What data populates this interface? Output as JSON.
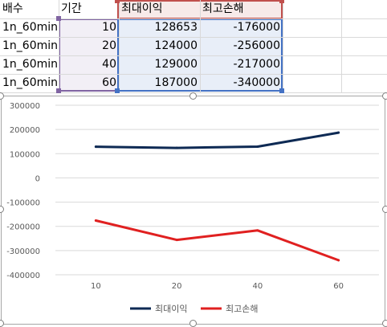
{
  "sheet": {
    "headers": [
      "배수",
      "기간",
      "최대이익",
      "최고손해"
    ],
    "rows": [
      {
        "multiplier": "1n_60min",
        "period": "10",
        "max_profit": "128653",
        "max_loss": "-176000"
      },
      {
        "multiplier": "1n_60min",
        "period": "20",
        "max_profit": "124000",
        "max_loss": "-256000"
      },
      {
        "multiplier": "1n_60min",
        "period": "40",
        "max_profit": "129000",
        "max_loss": "-217000"
      },
      {
        "multiplier": "1n_60min",
        "period": "60",
        "max_profit": "187000",
        "max_loss": "-340000"
      }
    ],
    "colors": {
      "purple": "#8064a2",
      "blue": "#4472c4",
      "red": "#c0504d"
    }
  },
  "chart_data": {
    "type": "line",
    "categories": [
      "10",
      "20",
      "40",
      "60"
    ],
    "series": [
      {
        "name": "최대이익",
        "values": [
          128653,
          124000,
          129000,
          187000
        ],
        "color": "#0e2a54"
      },
      {
        "name": "최고손해",
        "values": [
          -176000,
          -256000,
          -217000,
          -340000
        ],
        "color": "#e02020"
      }
    ],
    "ylim": [
      -400000,
      300000
    ],
    "yticks": [
      "300000",
      "200000",
      "100000",
      "0",
      "-100000",
      "-200000",
      "-300000",
      "-400000"
    ],
    "grid": true,
    "legend": "bottom",
    "title": "",
    "xlabel": "",
    "ylabel": ""
  }
}
